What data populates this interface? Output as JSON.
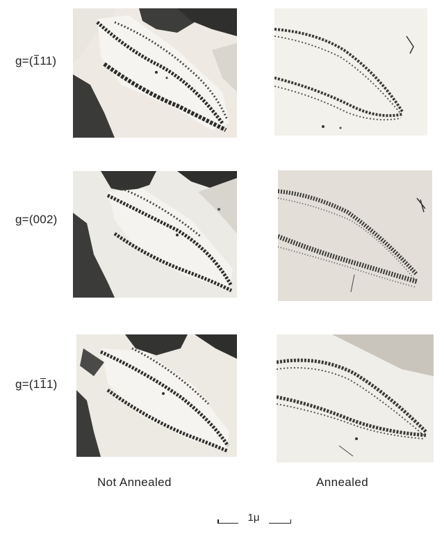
{
  "rows": [
    {
      "g_label": "g",
      "eq": "=(",
      "bar_digit": "1",
      "rest": "11)"
    },
    {
      "g_label": "g",
      "eq": "=(",
      "bar_digit": "",
      "rest": "002)"
    },
    {
      "g_label": "g",
      "eq": "=(1",
      "bar_digit": "1",
      "rest": "1)"
    }
  ],
  "columns": {
    "left_label": "Not   Annealed",
    "right_label": "Annealed"
  },
  "scale": {
    "label": "1μ"
  }
}
